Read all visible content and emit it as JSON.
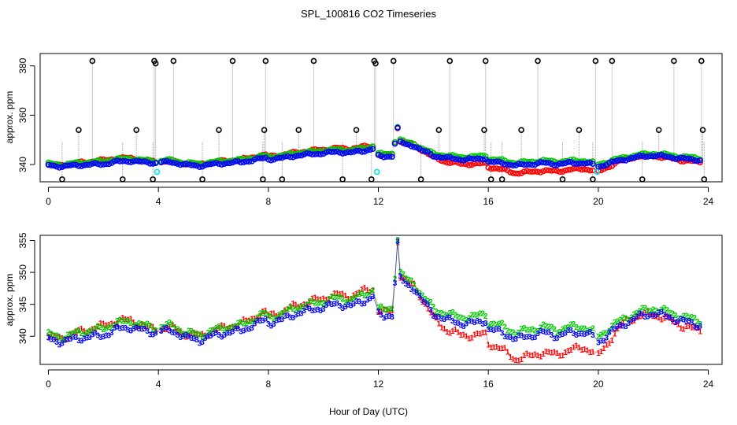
{
  "chart_data": {
    "type": "scatter",
    "title": "SPL_100816  CO2 Timeseries",
    "xlabel": "Hour of Day (UTC)",
    "panels": [
      {
        "id": "top",
        "ylabel": "approx. ppm",
        "xlim": [
          -0.3,
          24.5
        ],
        "ylim": [
          333,
          385
        ],
        "xticks": [
          0,
          4,
          8,
          12,
          16,
          20,
          24
        ],
        "yticks": [
          340,
          360,
          380
        ],
        "base_series": [
          {
            "name": "red",
            "color": "#ff0000"
          },
          {
            "name": "green",
            "color": "#00cc00"
          },
          {
            "name": "blue",
            "color": "#0000ff"
          }
        ],
        "spikes": {
          "color": "#000000",
          "guide_color": "#999999",
          "x": [
            0.5,
            1.1,
            1.6,
            2.7,
            3.2,
            3.8,
            3.85,
            3.9,
            4.55,
            5.6,
            6.2,
            6.7,
            7.8,
            7.85,
            7.9,
            8.5,
            9.1,
            9.65,
            10.7,
            11.2,
            11.75,
            11.85,
            11.9,
            12.55,
            13.55,
            14.2,
            14.6,
            15.85,
            15.9,
            16.1,
            16.5,
            17.2,
            17.8,
            18.7,
            19.3,
            19.8,
            19.9,
            20.5,
            21.6,
            22.2,
            22.75,
            23.75,
            23.8,
            23.85
          ],
          "y": [
            334,
            354,
            382,
            334,
            354,
            334,
            382,
            381,
            382,
            334,
            354,
            382,
            334,
            354,
            382,
            334,
            354,
            382,
            334,
            354,
            334,
            382,
            381,
            382,
            334,
            354,
            382,
            354,
            382,
            334,
            334,
            354,
            382,
            334,
            354,
            334,
            382,
            382,
            334,
            354,
            382,
            382,
            354,
            334
          ]
        },
        "cyan_points": {
          "color": "#00e5e5",
          "x": [
            3.95,
            11.95,
            19.95
          ],
          "y": [
            337,
            337,
            337
          ]
        }
      },
      {
        "id": "bottom",
        "ylabel": "approx. ppm",
        "xlim": [
          -0.3,
          24.5
        ],
        "ylim": [
          335.6,
          355.8
        ],
        "xticks": [
          0,
          4,
          8,
          12,
          16,
          20,
          24
        ],
        "yticks": [
          340,
          345,
          350,
          355
        ],
        "series": [
          {
            "name": "1",
            "glyph": "1",
            "color": "#ff0000",
            "offset_profile": "red"
          },
          {
            "name": "2",
            "glyph": "2",
            "color": "#00cc00",
            "offset_profile": "green"
          },
          {
            "name": "3",
            "glyph": "3",
            "color": "#0000ff",
            "offset_profile": "blue"
          }
        ]
      }
    ],
    "base_curve": {
      "x": [
        0,
        0.5,
        1,
        1.5,
        2,
        2.5,
        3,
        3.5,
        3.9,
        4.0,
        4.5,
        5,
        5.5,
        6,
        6.5,
        7,
        7.5,
        7.9,
        8.0,
        8.5,
        9,
        9.5,
        10,
        10.5,
        11,
        11.5,
        11.85,
        11.9,
        12.2,
        12.5,
        12.6,
        12.7,
        12.8,
        13.0,
        13.3,
        13.6,
        14.0,
        14.5,
        15.0,
        15.5,
        15.95,
        16.0,
        16.5,
        17,
        17.5,
        18,
        18.5,
        19,
        19.5,
        19.95,
        20.0,
        20.3,
        20.6,
        21,
        21.5,
        22,
        22.5,
        23,
        23.5,
        23.8
      ],
      "y": [
        340,
        339.5,
        340,
        340.3,
        340.5,
        341.5,
        341.8,
        341.2,
        341,
        341.2,
        341.3,
        340.2,
        339.8,
        340.5,
        341,
        341.3,
        342.3,
        343,
        342.5,
        343,
        344,
        344.5,
        345,
        345.5,
        345.2,
        346,
        347,
        344,
        343.5,
        344,
        349,
        355,
        349.5,
        348.5,
        348,
        346,
        344,
        343,
        342.5,
        342.5,
        343,
        341.5,
        341,
        340,
        340.5,
        341,
        340.5,
        341,
        341,
        340,
        339.5,
        340.5,
        341.5,
        342.5,
        343.5,
        344,
        343.5,
        342.8,
        342.3,
        342
      ]
    },
    "offsets": {
      "red": {
        "x": [
          0,
          2,
          3,
          4,
          7.5,
          8,
          11.5,
          12,
          13.5,
          14.5,
          16,
          17,
          18,
          19,
          20,
          21,
          23,
          23.8
        ],
        "y": [
          0,
          1.2,
          0.8,
          0,
          0.8,
          0.8,
          1.2,
          0.3,
          0,
          -2,
          -2.5,
          -3.5,
          -3.5,
          -3,
          -2.5,
          0,
          -1,
          -1.2
        ]
      },
      "green": {
        "x": [
          0,
          2,
          4,
          8,
          12,
          13.5,
          16,
          20,
          24
        ],
        "y": [
          0.3,
          0.8,
          0.4,
          0.6,
          0.6,
          0.4,
          0.7,
          0.5,
          0.4
        ]
      },
      "blue": {
        "x": [
          0,
          12,
          24
        ],
        "y": [
          -0.3,
          -0.4,
          -0.3
        ]
      }
    }
  }
}
